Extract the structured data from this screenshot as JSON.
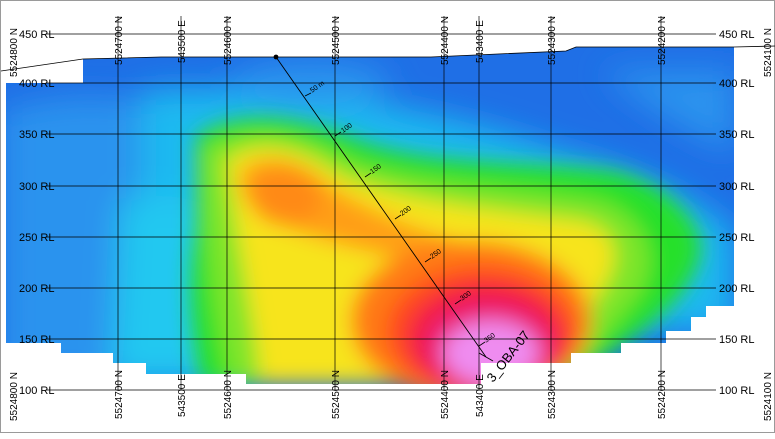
{
  "section": {
    "elevation_labels": [
      "450 RL",
      "400 RL",
      "350 RL",
      "300 RL",
      "250 RL",
      "200 RL",
      "150 RL",
      "100 RL"
    ],
    "northing_labels": [
      "5524800 N",
      "5524700 N",
      "5524600 N",
      "5524500 N",
      "5524400 N",
      "5524300 N",
      "5524200 N",
      "5524100 N"
    ],
    "easting_label": "543500 E",
    "easting_label_2": "543400 E"
  },
  "drillhole": {
    "name": "3_OBA-07",
    "depth_labels": [
      "50 m",
      "100",
      "150",
      "200",
      "250",
      "300",
      "350"
    ]
  },
  "colors": {
    "low": "#1f6fe6",
    "mid_low": "#19c9f2",
    "mid": "#27e02a",
    "mid_high": "#f7e41c",
    "high": "#ff7a12",
    "very_high": "#f2124a",
    "peak": "#ef8cf0"
  }
}
